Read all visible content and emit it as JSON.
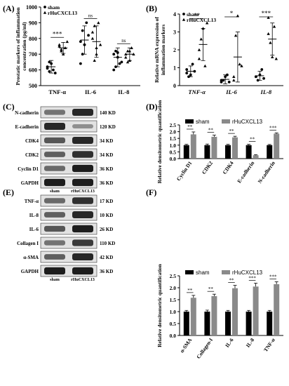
{
  "panels": {
    "A": {
      "label": "(A)",
      "chart_data": {
        "type": "scatter",
        "ylabel": "Prostatic markers of inflammation concentration (pg/ml)",
        "ylabel_lines": [
          "Prostatic markers of inflammation",
          "concentration (pg/ml)"
        ],
        "categories": [
          "TNF-α",
          "IL-6",
          "IL-8"
        ],
        "ylim": [
          500,
          1000
        ],
        "yticks": [
          500,
          600,
          700,
          800,
          900,
          1000
        ],
        "legend": [
          "sham",
          "rHuCXCL13"
        ],
        "legend_position": "top-left",
        "series": [
          {
            "name": "sham",
            "marker": "circle",
            "points": [
              [
                620,
                590,
                640,
                600,
                580,
                610,
                650
              ],
              [
                640,
                700,
                760,
                900,
                820,
                780,
                850,
                760
              ],
              [
                600,
                720,
                680,
                640,
                650,
                700,
                620,
                710
              ]
            ],
            "mean": [
              620,
              790,
              680
            ],
            "sd": [
              40,
              90,
              60
            ]
          },
          {
            "name": "rHuCXCL13",
            "marker": "triangle",
            "points": [
              [
                760,
                720,
                700,
                740,
                780,
                750,
                730
              ],
              [
                840,
                660,
                700,
                900,
                760,
                800,
                880,
                740
              ],
              [
                700,
                650,
                720,
                740,
                700,
                680,
                720,
                660
              ]
            ],
            "mean": [
              740,
              780,
              700
            ],
            "sd": [
              35,
              100,
              40
            ]
          }
        ],
        "significance": [
          "***",
          "ns",
          "ns"
        ]
      }
    },
    "B": {
      "label": "(B)",
      "chart_data": {
        "type": "scatter",
        "ylabel": "Relative mRNA expression of inflammation markers",
        "ylabel_lines": [
          "Relative mRNA expression of",
          "inflammation markers"
        ],
        "categories": [
          "TNF-α",
          "IL-6",
          "IL-8"
        ],
        "ylim": [
          0,
          4
        ],
        "yticks": [
          0,
          1,
          2,
          3,
          4
        ],
        "legend": [
          "sham",
          "rHuCXCL13"
        ],
        "legend_position": "top-left",
        "series": [
          {
            "name": "sham",
            "marker": "circle",
            "points": [
              [
                0.9,
                0.5,
                0.6,
                1.2,
                0.8,
                0.7
              ],
              [
                0.2,
                0.3,
                0.5,
                0.6,
                0.2,
                0.3
              ],
              [
                0.5,
                0.3,
                0.6,
                0.9,
                0.4,
                0.5
              ]
            ],
            "mean": [
              0.8,
              0.35,
              0.55
            ],
            "sd": [
              0.3,
              0.25,
              0.25
            ]
          },
          {
            "name": "rHuCXCL13",
            "marker": "triangle",
            "points": [
              [
                1.5,
                2.6,
                3.2,
                1.1,
                3.5,
                2.0
              ],
              [
                0.3,
                2.8,
                3.9,
                1.2,
                1.1,
                0.5
              ],
              [
                3.8,
                2.4,
                1.6,
                3.3,
                1.5,
                2.9
              ]
            ],
            "mean": [
              2.3,
              1.6,
              2.6
            ],
            "sd": [
              0.9,
              1.4,
              0.9
            ]
          }
        ],
        "significance": [
          "**",
          "*",
          "***"
        ]
      }
    },
    "C": {
      "label": "(C)",
      "rows": [
        {
          "name": "N-cadherin",
          "kd": "140 KD",
          "sham": 0.45,
          "treat": 0.85
        },
        {
          "name": "E-cadherin",
          "kd": "120 KD",
          "sham": 0.85,
          "treat": 0.3
        },
        {
          "name": "CDK4",
          "kd": "34 KD",
          "sham": 0.6,
          "treat": 0.85
        },
        {
          "name": "CDK2",
          "kd": "34 KD",
          "sham": 0.55,
          "treat": 0.8
        },
        {
          "name": "Cyclin D1",
          "kd": "36 KD",
          "sham": 0.5,
          "treat": 0.9
        },
        {
          "name": "GAPDH",
          "kd": "36 KD",
          "sham": 0.9,
          "treat": 0.9
        }
      ],
      "lanes": [
        "sham",
        "rHuCXCL13"
      ]
    },
    "D": {
      "label": "(D)",
      "chart_data": {
        "type": "bar",
        "ylabel": "Relative densitometric quantification",
        "categories": [
          "Cyclin D1",
          "CDK2",
          "CDK4",
          "E-cadherin",
          "N-cadherin"
        ],
        "ylim": [
          0,
          2.5
        ],
        "yticks": [
          0.0,
          0.5,
          1.0,
          1.5,
          2.0,
          2.5
        ],
        "legend_position": "top",
        "series": [
          {
            "name": "sham",
            "color": "#000000",
            "values": [
              1.0,
              1.0,
              1.0,
              1.0,
              1.0
            ],
            "err": [
              0.06,
              0.08,
              0.06,
              0.06,
              0.05
            ]
          },
          {
            "name": "rHuCXCL13",
            "color": "#8a8a8a",
            "values": [
              1.8,
              1.62,
              1.58,
              0.25,
              1.85
            ],
            "err": [
              0.18,
              0.12,
              0.08,
              0.04,
              0.06
            ]
          }
        ],
        "significance": [
          "**",
          "**",
          "**",
          "**",
          "***"
        ]
      }
    },
    "E": {
      "label": "(E)",
      "rows": [
        {
          "name": "TNF-α",
          "kd": "17 KD",
          "sham": 0.5,
          "treat": 0.8
        },
        {
          "name": "IL-8",
          "kd": "10 KD",
          "sham": 0.55,
          "treat": 0.85
        },
        {
          "name": "IL-6",
          "kd": "26 KD",
          "sham": 0.6,
          "treat": 0.9
        },
        {
          "name": "Collagen I",
          "kd": "110 KD",
          "sham": 0.45,
          "treat": 0.75
        },
        {
          "name": "α-SMA",
          "kd": "42 KD",
          "sham": 0.55,
          "treat": 0.85
        },
        {
          "name": "GAPDH",
          "kd": "36 KD",
          "sham": 0.9,
          "treat": 0.9
        }
      ],
      "lanes": [
        "sham",
        "rHuCXCL13"
      ]
    },
    "F": {
      "label": "(F)",
      "chart_data": {
        "type": "bar",
        "ylabel": "Relative densitometric quantification",
        "categories": [
          "α-SMA",
          "Collagen-I",
          "IL-6",
          "IL-8",
          "TNF-α"
        ],
        "ylim": [
          0,
          2.5
        ],
        "yticks": [
          0.0,
          0.5,
          1.0,
          1.5,
          2.0,
          2.5
        ],
        "legend_position": "top",
        "series": [
          {
            "name": "sham",
            "color": "#000000",
            "values": [
              1.0,
              1.0,
              1.0,
              1.0,
              1.0
            ],
            "err": [
              0.05,
              0.06,
              0.05,
              0.05,
              0.05
            ]
          },
          {
            "name": "rHuCXCL13",
            "color": "#8a8a8a",
            "values": [
              1.58,
              1.65,
              1.98,
              2.05,
              2.15
            ],
            "err": [
              0.1,
              0.08,
              0.12,
              0.14,
              0.1
            ]
          }
        ],
        "significance": [
          "**",
          "**",
          "**",
          "***",
          "***"
        ]
      }
    }
  }
}
